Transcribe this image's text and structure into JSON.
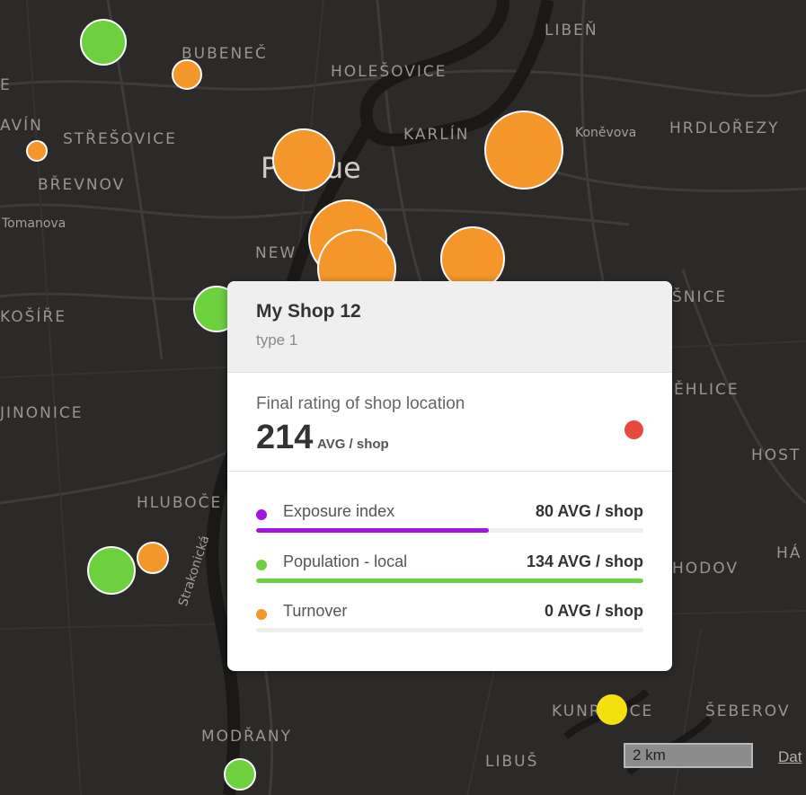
{
  "map": {
    "city_label": "Prague",
    "districts": [
      "LIBEŇ",
      "BUBENEČ",
      "HOLEŠOVICE",
      "AVÍN",
      "STŘEŠOVICE",
      "KARLÍN",
      "HRDLOŘEZY",
      "BŘEVNOV",
      "NEW",
      "KOŠÍŘE",
      "ŠNICE",
      "ĚHLICE",
      "JINONICE",
      "HOST",
      "HLUBOČE",
      "HÁ",
      "HODOV",
      "KUNRATICE",
      "ŠEBEROV",
      "MODŘANY",
      "LIBUŠ",
      "E"
    ],
    "streets": [
      "Koněvova",
      "Tomanova",
      "Strakonická"
    ],
    "scale_label": "2 km",
    "attribution_label": "Dat"
  },
  "markers": [
    {
      "color": "#6dd13f",
      "size": "large",
      "name": "marker-green-1"
    },
    {
      "color": "#f5962a",
      "size": "small",
      "name": "marker-orange-1"
    },
    {
      "color": "#f5962a",
      "size": "tiny",
      "name": "marker-orange-2"
    },
    {
      "color": "#f5962a",
      "size": "large",
      "name": "marker-orange-3"
    },
    {
      "color": "#f5962a",
      "size": "xlarge",
      "name": "marker-orange-4"
    },
    {
      "color": "#f5962a",
      "size": "xlarge",
      "name": "marker-orange-5"
    },
    {
      "color": "#f5962a",
      "size": "xlarge",
      "name": "marker-orange-6"
    },
    {
      "color": "#f5962a",
      "size": "large",
      "name": "marker-orange-7"
    },
    {
      "color": "#6dd13f",
      "size": "large",
      "name": "marker-green-2"
    },
    {
      "color": "#6dd13f",
      "size": "large",
      "name": "marker-green-3"
    },
    {
      "color": "#f5962a",
      "size": "small",
      "name": "marker-orange-8"
    },
    {
      "color": "#6dd13f",
      "size": "small",
      "name": "marker-green-4"
    },
    {
      "color": "#f5e00f",
      "size": "small",
      "name": "marker-yellow-1"
    }
  ],
  "popup": {
    "title": "My Shop 12",
    "type": "type 1",
    "rating_label": "Final rating of shop location",
    "rating_value": "214",
    "rating_unit": "AVG / shop",
    "rating_color": "#e9483d",
    "metrics": [
      {
        "label": "Exposure index",
        "value": "80 AVG / shop",
        "color": "#a414e0",
        "fill_fraction": 0.6
      },
      {
        "label": "Population - local",
        "value": "134 AVG / shop",
        "color": "#6dd13f",
        "fill_fraction": 1.0
      },
      {
        "label": "Turnover",
        "value": "0 AVG / shop",
        "color": "#f5962a",
        "fill_fraction": 0.0
      }
    ]
  }
}
